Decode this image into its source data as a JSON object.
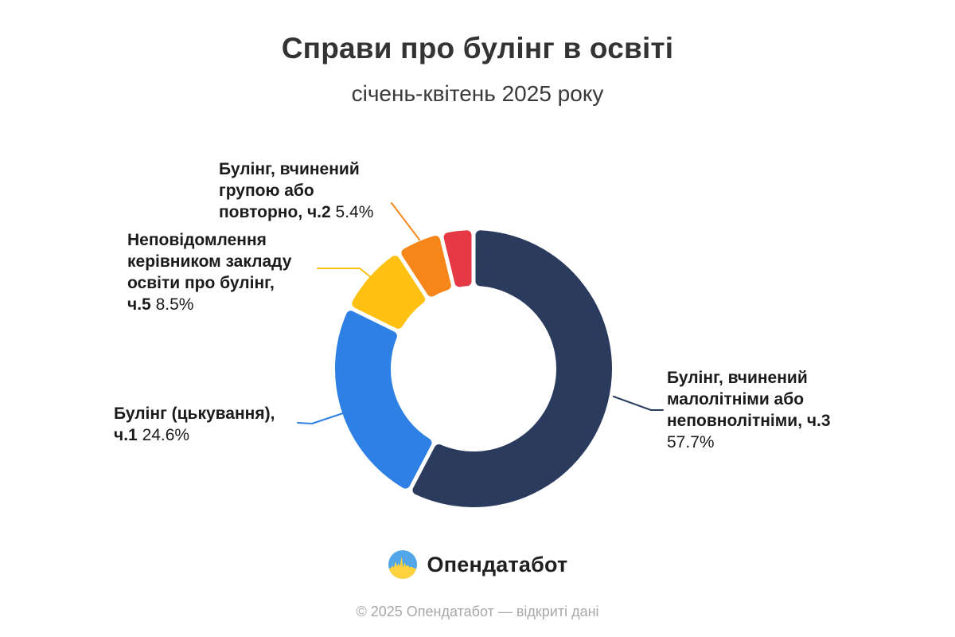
{
  "header": {
    "title": "Справи про булінг в освіті",
    "subtitle": "січень-квітень 2025 року"
  },
  "chart_data": {
    "type": "pie",
    "variant": "donut",
    "title": "Справи про булінг в освіті",
    "subtitle": "січень-квітень 2025 року",
    "unit": "%",
    "start_angle_deg": 0,
    "direction": "clockwise",
    "legend_position": "callout-labels",
    "segments": [
      {
        "label": "Булінг, вчинений малолітніми або неповнолітніми, ч.3",
        "value": 57.7,
        "percent_label": "57.7%",
        "color": "#2B3B5E"
      },
      {
        "label": "Булінг (цькування), ч.1",
        "value": 24.6,
        "percent_label": "24.6%",
        "color": "#2F80E4"
      },
      {
        "label": "Неповідомлення керівником закладу освіти про булінг, ч.5",
        "value": 8.5,
        "percent_label": "8.5%",
        "color": "#FEC011"
      },
      {
        "label": "Булінг, вчинений групою або повторно, ч.2",
        "value": 5.4,
        "percent_label": "5.4%",
        "color": "#F6861A"
      },
      {
        "label": "",
        "value": 3.8,
        "percent_label": "",
        "color": "#E63946"
      }
    ]
  },
  "footer": {
    "brand": "Опендатабот",
    "copyright": "© 2025 Опендатабот — відкриті дані"
  }
}
